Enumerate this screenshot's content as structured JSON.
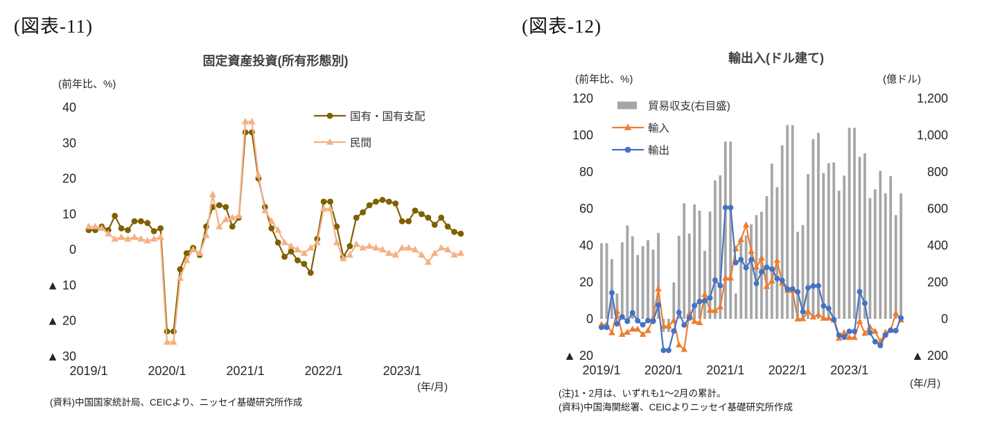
{
  "page": {
    "background": "#FFFFFF"
  },
  "figures": [
    {
      "label": "(図表-11)",
      "title": "固定資産投資(所有形態別)",
      "y_axis_unit": "(前年比、%)",
      "x_axis_unit": "(年/月)",
      "source": "(資料)中国国家統計局、CEICより、ニッセイ基礎研究所作成"
    },
    {
      "label": "(図表-12)",
      "title": "輸出入(ドル建て)",
      "y_axis_unit_left": "(前年比、%)",
      "y_axis_unit_right": "(億ドル)",
      "x_axis_unit": "(年/月)",
      "note": "(注)1・2月は、いずれも1〜2月の累計。",
      "source": "(資料)中国海関総署、CEICよりニッセイ基礎研究所作成"
    }
  ],
  "chart_data": [
    {
      "type": "line",
      "title": "固定資産投資(所有形態別)",
      "ylabel": "(前年比、%)",
      "xlabel": "(年/月)",
      "ylim": [
        -30,
        40
      ],
      "ytick_step": 10,
      "yticks": [
        "40",
        "30",
        "20",
        "10",
        "0",
        "▲ 10",
        "▲ 20",
        "▲ 30"
      ],
      "x_range": {
        "start": "2019/1",
        "end": "2023/10",
        "freq": "monthly"
      },
      "xticks": [
        "2019/1",
        "2020/1",
        "2021/1",
        "2022/1",
        "2023/1"
      ],
      "grid": false,
      "legend_position": "upper-right-inside",
      "series": [
        {
          "name": "国有・国有支配",
          "color": "#7F6000",
          "marker": "circle",
          "values": [
            5.5,
            5.5,
            6.5,
            5.5,
            9.5,
            6.0,
            5.5,
            8.0,
            8.0,
            7.5,
            5.2,
            6.0,
            -23.0,
            -23.0,
            -5.5,
            -1.0,
            0.5,
            -1.5,
            6.5,
            12.0,
            12.5,
            12.0,
            6.5,
            9.0,
            33.0,
            33.0,
            20.0,
            12.0,
            6.0,
            2.0,
            -2.0,
            -0.5,
            -3.0,
            -4.0,
            -6.5,
            3.0,
            13.5,
            13.5,
            6.5,
            -2.0,
            1.0,
            9.0,
            10.5,
            12.5,
            13.5,
            14.0,
            13.5,
            13.0,
            8.0,
            8.0,
            11.0,
            10.0,
            9.0,
            7.0,
            9.0,
            6.5,
            5.0,
            4.5
          ]
        },
        {
          "name": "民間",
          "color": "#F4B183",
          "marker": "triangle",
          "values": [
            6.5,
            6.5,
            6.0,
            4.5,
            3.0,
            3.5,
            3.0,
            3.5,
            3.0,
            2.5,
            3.0,
            3.5,
            -26.0,
            -26.0,
            -8.0,
            -3.0,
            0.0,
            -1.0,
            4.0,
            15.5,
            6.5,
            8.5,
            9.0,
            9.5,
            36.0,
            36.0,
            21.0,
            11.0,
            8.0,
            5.5,
            2.0,
            1.0,
            0.0,
            -1.0,
            0.5,
            2.0,
            11.5,
            11.5,
            2.0,
            -2.5,
            -1.5,
            1.5,
            0.5,
            1.0,
            0.5,
            0.0,
            -1.0,
            -1.5,
            0.5,
            0.5,
            0.0,
            -1.5,
            -3.5,
            -1.0,
            0.5,
            0.0,
            -1.5,
            -1.0
          ]
        }
      ]
    },
    {
      "type": "combo",
      "title": "輸出入(ドル建て)",
      "ylabel_left": "(前年比、%)",
      "ylabel_right": "(億ドル)",
      "xlabel": "(年/月)",
      "ylim_left": [
        -20,
        120
      ],
      "yticks_left": [
        "120",
        "100",
        "80",
        "60",
        "40",
        "20",
        "0",
        "▲ 20"
      ],
      "ylim_right": [
        -200,
        1200
      ],
      "yticks_right": [
        "1,200",
        "1,000",
        "800",
        "600",
        "400",
        "200",
        "0",
        "▲ 200"
      ],
      "x_range": {
        "start": "2019/1",
        "end": "2023/11",
        "freq": "monthly"
      },
      "xticks": [
        "2019/1",
        "2020/1",
        "2021/1",
        "2022/1",
        "2023/1"
      ],
      "grid": false,
      "legend_position": "upper-left-inside",
      "series": [
        {
          "name": "貿易収支(右目盛)",
          "chart": "bar",
          "axis": "right",
          "color": "#A6A6A6",
          "values": [
            412,
            412,
            326,
            138,
            417,
            509,
            450,
            348,
            396,
            428,
            377,
            468,
            -71,
            -71,
            199,
            453,
            629,
            464,
            623,
            589,
            370,
            584,
            754,
            781,
            965,
            965,
            138,
            429,
            455,
            515,
            565,
            583,
            668,
            845,
            717,
            944,
            1055,
            1055,
            474,
            511,
            788,
            979,
            1013,
            794,
            847,
            852,
            698,
            780,
            1040,
            1040,
            882,
            902,
            658,
            706,
            806,
            684,
            777,
            565,
            684
          ]
        },
        {
          "name": "輸入",
          "chart": "line",
          "axis": "left",
          "color": "#ED7D31",
          "marker": "triangle",
          "values": [
            -3.1,
            -3.1,
            -7.6,
            4.0,
            -8.5,
            -7.3,
            -5.6,
            -5.6,
            -8.5,
            -6.4,
            0.3,
            16.3,
            -4.0,
            -4.0,
            -0.9,
            -14.2,
            -16.7,
            2.7,
            -1.4,
            -2.1,
            13.2,
            4.7,
            4.5,
            6.5,
            22.2,
            22.2,
            38.1,
            43.1,
            51.1,
            36.7,
            28.1,
            33.1,
            17.6,
            20.6,
            31.7,
            19.5,
            15.5,
            15.5,
            -0.1,
            0.0,
            4.1,
            1.0,
            2.3,
            0.3,
            0.3,
            -0.7,
            -10.6,
            -7.5,
            -10.2,
            -10.2,
            -1.4,
            -7.9,
            -4.5,
            -6.8,
            -12.4,
            -7.3,
            -6.2,
            3.0,
            -0.6
          ]
        },
        {
          "name": "輸出",
          "chart": "line",
          "axis": "left",
          "color": "#4472C4",
          "marker": "circle",
          "values": [
            -4.6,
            -4.6,
            14.2,
            -2.7,
            1.1,
            -1.3,
            3.3,
            -1.0,
            -3.2,
            -0.9,
            -1.3,
            7.6,
            -17.1,
            -17.1,
            -6.6,
            3.5,
            -3.3,
            0.5,
            7.2,
            9.5,
            9.9,
            11.4,
            21.1,
            18.1,
            60.6,
            60.6,
            30.6,
            32.3,
            27.9,
            32.2,
            19.3,
            25.6,
            28.1,
            27.1,
            22.0,
            20.9,
            16.3,
            16.3,
            14.7,
            3.9,
            16.9,
            17.9,
            18.0,
            7.1,
            5.7,
            -0.3,
            -8.9,
            -9.9,
            -6.8,
            -6.8,
            14.8,
            8.5,
            -7.5,
            -12.4,
            -14.5,
            -8.8,
            -6.2,
            -6.4,
            0.5
          ]
        }
      ]
    }
  ]
}
